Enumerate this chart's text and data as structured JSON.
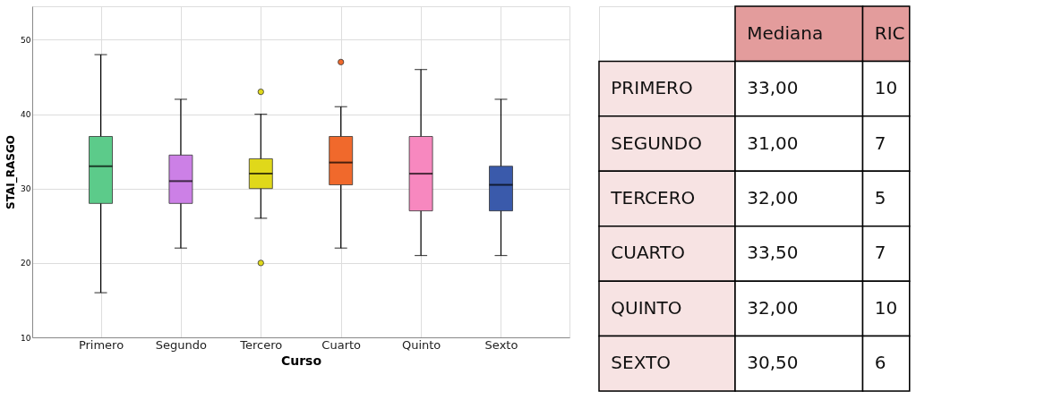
{
  "chart_data": [
    {
      "type": "box",
      "xlabel": "Curso",
      "ylabel": "STAI_RASGO",
      "categories": [
        "Primero",
        "Segundo",
        "Tercero",
        "Cuarto",
        "Quinto",
        "Sexto"
      ],
      "colors": [
        "#5ccb8a",
        "#cc80e6",
        "#e0d81a",
        "#f0692c",
        "#f788bf",
        "#3a5aab"
      ],
      "boxes": [
        {
          "low": 16,
          "q1": 28,
          "median": 33,
          "q3": 37,
          "high": 48
        },
        {
          "low": 22,
          "q1": 28,
          "median": 31,
          "q3": 34.5,
          "high": 42
        },
        {
          "low": 26,
          "q1": 30,
          "median": 32,
          "q3": 34,
          "high": 40,
          "outliers": [
            43,
            20
          ]
        },
        {
          "low": 22,
          "q1": 30.5,
          "median": 33.5,
          "q3": 37,
          "high": 41,
          "outliers": [
            47
          ]
        },
        {
          "low": 21,
          "q1": 27,
          "median": 32,
          "q3": 37,
          "high": 46
        },
        {
          "low": 21,
          "q1": 27,
          "median": 30.5,
          "q3": 33,
          "high": 42
        }
      ],
      "ylim": [
        10,
        54.5
      ],
      "yticks": [
        10,
        20,
        30,
        40,
        50
      ],
      "grid": true
    },
    {
      "type": "other",
      "categories": [
        "Mediana",
        "RIC"
      ],
      "y_categories": [
        "PRIMERO",
        "SEGUNDO",
        "TERCERO",
        "CUARTO",
        "QUINTO",
        "SEXTO"
      ],
      "cell_labels": [
        [
          "33,00",
          "10"
        ],
        [
          "31,00",
          "7"
        ],
        [
          "32,00",
          "5"
        ],
        [
          "33,50",
          "7"
        ],
        [
          "32,00",
          "10"
        ],
        [
          "30,50",
          "6"
        ]
      ]
    }
  ]
}
